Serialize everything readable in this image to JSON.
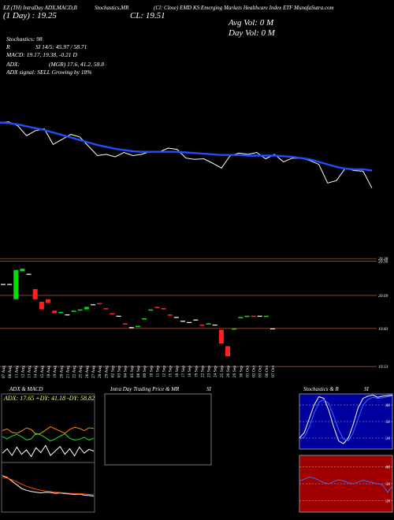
{
  "header": {
    "row1": [
      "EZ (TH) IntraDay ADX,MACD,B",
      "Stochastics,MR",
      "(Cl: Close) EMD",
      "KS Emerging Markets Healthcare Index ETF MunafaSutra.com"
    ],
    "row2": [
      "(1 Day) : 19.25",
      "CL: 19.51"
    ],
    "volume": [
      "Avg Vol: 0  M",
      "Day Vol: 0  M"
    ],
    "stats": [
      "Stochastics: 98",
      "R",
      "SI 14/5: 45.97 / 58.71",
      "MACD: 19.17, 19.38, -0.21 D",
      "ADX:",
      "(MGR) 17.6, 41.2, 58.8",
      "ADX  signal: SELL Growing by 18%"
    ]
  },
  "panels": {
    "adx_title": "ADX  & MACD",
    "adx_text": "ADX: 17.65 +DY: 41.18 -DY: 58.82",
    "intraday_title": "Intra  Day Trading Price  & MR",
    "intraday_si": "SI",
    "stoch_title": "Stochastics & R",
    "stoch_si": "SI"
  },
  "chart_data": [
    {
      "type": "line",
      "ylim": [
        19.3,
        20.5
      ],
      "series": [
        {
          "color": "#ffffff",
          "values": [
            20.43,
            20.44,
            20.38,
            20.22,
            20.3,
            20.33,
            20.08,
            20.16,
            20.24,
            20.2,
            20.05,
            19.9,
            19.92,
            19.88,
            19.95,
            19.9,
            19.92,
            19.97,
            19.96,
            20.02,
            20.0,
            19.86,
            19.84,
            19.85,
            19.78,
            19.7,
            19.9,
            19.94,
            19.92,
            19.95,
            19.85,
            19.92,
            19.8,
            19.86,
            19.86,
            19.82,
            19.76,
            19.46,
            19.5,
            19.7,
            19.66,
            19.65,
            19.38
          ]
        },
        {
          "color": "#1f4fff",
          "values": [
            20.43,
            20.42,
            20.4,
            20.37,
            20.34,
            20.31,
            20.27,
            20.23,
            20.19,
            20.15,
            20.11,
            20.07,
            20.04,
            20.01,
            19.99,
            19.97,
            19.96,
            19.96,
            19.96,
            19.96,
            19.96,
            19.95,
            19.94,
            19.93,
            19.92,
            19.91,
            19.91,
            19.91,
            19.9,
            19.9,
            19.9,
            19.9,
            19.89,
            19.88,
            19.86,
            19.84,
            19.8,
            19.76,
            19.72,
            19.69,
            19.68,
            19.68,
            19.66
          ]
        }
      ]
    },
    {
      "type": "candlestick",
      "ylim": [
        19.5,
        20.4
      ],
      "yticks": [
        20.38,
        20.36,
        20.09,
        19.83,
        19.53
      ],
      "grid_color": "#a0522d",
      "up_color": "#00e000",
      "down_color": "#ff2020",
      "flat_color": "#ffffff",
      "categories": [
        "07 Aug",
        "08 Aug",
        "11 Aug",
        "12 Aug",
        "13 Aug",
        "14 Aug",
        "15 Aug",
        "18 Aug",
        "19 Aug",
        "20 Aug",
        "21 Aug",
        "22 Aug",
        "25 Aug",
        "26 Aug",
        "27 Aug",
        "28 Aug",
        "29 Aug",
        "02 Sep",
        "03 Sep",
        "04 Sep",
        "05 Sep",
        "08 Sep",
        "09 Sep",
        "10 Sep",
        "11 Sep",
        "12 Sep",
        "15 Sep",
        "16 Sep",
        "17 Sep",
        "18 Sep",
        "19 Sep",
        "22 Sep",
        "23 Sep",
        "24 Sep",
        "25 Sep",
        "26 Sep",
        "29 Sep",
        "30 Sep",
        "01 Oct",
        "02 Oct",
        "03 Oct",
        "06 Oct",
        "07 Oct"
      ],
      "open": [
        20.18,
        20.18,
        20.06,
        20.28,
        20.26,
        20.14,
        20.04,
        20.06,
        19.97,
        19.95,
        19.94,
        19.96,
        19.97,
        19.98,
        20.02,
        20.03,
        19.99,
        19.95,
        19.93,
        19.87,
        19.84,
        19.84,
        19.9,
        19.97,
        20.0,
        19.99,
        19.94,
        19.92,
        19.89,
        19.88,
        19.9,
        19.86,
        19.86,
        19.86,
        19.82,
        19.69,
        19.82,
        19.91,
        19.92,
        19.93,
        19.93,
        19.92,
        19.83
      ],
      "close": [
        20.18,
        20.18,
        20.29,
        20.3,
        20.26,
        20.06,
        19.98,
        20.03,
        19.95,
        19.96,
        19.94,
        19.97,
        19.98,
        20.0,
        20.02,
        20.02,
        19.98,
        19.94,
        19.93,
        19.86,
        19.84,
        19.85,
        19.91,
        19.98,
        19.99,
        19.98,
        19.93,
        19.92,
        19.89,
        19.88,
        19.9,
        19.85,
        19.87,
        19.86,
        19.71,
        19.61,
        19.83,
        19.92,
        19.93,
        19.92,
        19.93,
        19.93,
        19.83
      ]
    },
    {
      "type": "line",
      "ylim": [
        0,
        100
      ],
      "series": [
        {
          "color": "#ff8c00",
          "values": [
            55,
            58,
            52,
            50,
            54,
            60,
            57,
            48,
            50,
            56,
            62,
            58,
            54,
            50,
            57,
            61,
            59,
            55,
            60,
            58.82
          ]
        },
        {
          "color": "#22dd22",
          "values": [
            44,
            40,
            45,
            48,
            44,
            38,
            40,
            50,
            47,
            42,
            36,
            40,
            45,
            49,
            41,
            38,
            39,
            43,
            38,
            41.18
          ]
        },
        {
          "color": "#ffffff",
          "values": [
            14,
            22,
            10,
            25,
            12,
            20,
            8,
            24,
            15,
            28,
            10,
            18,
            26,
            12,
            22,
            9,
            25,
            14,
            21,
            17.65
          ]
        }
      ]
    },
    {
      "type": "line",
      "ylim": [
        -0.6,
        0.6
      ],
      "series": [
        {
          "color": "#ffffff",
          "values": [
            0.35,
            0.3,
            0.2,
            0.1,
            0.0,
            -0.05,
            -0.08,
            -0.1,
            -0.12,
            -0.1,
            -0.11,
            -0.13,
            -0.12,
            -0.14,
            -0.15,
            -0.16,
            -0.15,
            -0.18,
            -0.19,
            -0.21
          ]
        },
        {
          "color": "#ff4500",
          "values": [
            0.3,
            0.28,
            0.24,
            0.18,
            0.12,
            0.06,
            0.02,
            -0.02,
            -0.05,
            -0.07,
            -0.08,
            -0.1,
            -0.11,
            -0.12,
            -0.13,
            -0.14,
            -0.14,
            -0.15,
            -0.16,
            -0.17
          ]
        }
      ]
    },
    {
      "type": "line",
      "ylim": [
        0,
        100
      ],
      "yticks": [
        80,
        50,
        20
      ],
      "background": "#0000a0",
      "series": [
        {
          "color": "#ffffff",
          "values": [
            20,
            30,
            55,
            80,
            95,
            92,
            70,
            40,
            15,
            10,
            20,
            45,
            75,
            92,
            96,
            98,
            94,
            96,
            97,
            98
          ]
        },
        {
          "color": "#3a6bff",
          "values": [
            18,
            22,
            40,
            65,
            85,
            90,
            82,
            60,
            35,
            18,
            15,
            30,
            55,
            80,
            90,
            94,
            92,
            93,
            95,
            96
          ]
        }
      ]
    },
    {
      "type": "line",
      "ylim": [
        0,
        100
      ],
      "yticks": [
        80,
        50,
        20
      ],
      "background": "#a00000",
      "series": [
        {
          "color": "#3a6bff",
          "values": [
            55,
            58,
            62,
            60,
            56,
            52,
            50,
            54,
            57,
            55,
            52,
            50,
            53,
            56,
            54,
            52,
            50,
            48,
            35,
            45.97
          ]
        }
      ]
    }
  ]
}
